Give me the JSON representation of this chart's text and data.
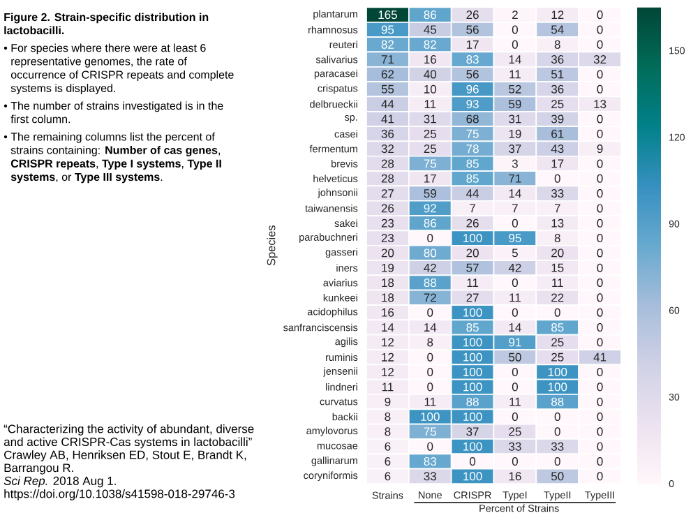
{
  "chart_data": {
    "type": "heatmap",
    "title": "Figure 2. Strain-specific distribution in lactobacilli.",
    "xlabel": "Percent of Strains",
    "ylabel": "Species",
    "categories": [
      "Strains",
      "None",
      "CRISPR",
      "TypeI",
      "TypeII",
      "TypeIII"
    ],
    "y_categories": [
      "plantarum",
      "rhamnosus",
      "reuteri",
      "salivarius",
      "paracasei",
      "crispatus",
      "delbrueckii",
      "sp.",
      "casei",
      "fermentum",
      "brevis",
      "helveticus",
      "johnsonii",
      "taiwanensis",
      "sakei",
      "parabuchneri",
      "gasseri",
      "iners",
      "aviarius",
      "kunkeei",
      "acidophilus",
      "sanfranciscensis",
      "agilis",
      "ruminis",
      "jensenii",
      "lindneri",
      "curvatus",
      "backii",
      "amylovorus",
      "mucosae",
      "gallinarum",
      "coryniformis"
    ],
    "cells": [
      [
        165,
        86,
        26,
        2,
        12,
        0
      ],
      [
        95,
        45,
        56,
        0,
        54,
        0
      ],
      [
        82,
        82,
        17,
        0,
        8,
        0
      ],
      [
        71,
        16,
        83,
        14,
        36,
        32
      ],
      [
        62,
        40,
        56,
        11,
        51,
        0
      ],
      [
        55,
        10,
        96,
        52,
        36,
        0
      ],
      [
        44,
        11,
        93,
        59,
        25,
        13
      ],
      [
        41,
        31,
        68,
        31,
        39,
        0
      ],
      [
        36,
        25,
        75,
        19,
        61,
        0
      ],
      [
        32,
        25,
        78,
        37,
        43,
        9
      ],
      [
        28,
        75,
        85,
        3,
        17,
        0
      ],
      [
        28,
        17,
        85,
        71,
        0,
        0
      ],
      [
        27,
        59,
        44,
        14,
        33,
        0
      ],
      [
        26,
        92,
        7,
        7,
        7,
        0
      ],
      [
        23,
        86,
        26,
        0,
        13,
        0
      ],
      [
        23,
        0,
        100,
        95,
        8,
        0
      ],
      [
        20,
        80,
        20,
        5,
        20,
        0
      ],
      [
        19,
        42,
        57,
        42,
        15,
        0
      ],
      [
        18,
        88,
        11,
        0,
        11,
        0
      ],
      [
        18,
        72,
        27,
        11,
        22,
        0
      ],
      [
        16,
        0,
        100,
        0,
        0,
        0
      ],
      [
        14,
        14,
        85,
        14,
        85,
        0
      ],
      [
        12,
        8,
        100,
        91,
        25,
        0
      ],
      [
        12,
        0,
        100,
        50,
        25,
        41
      ],
      [
        12,
        0,
        100,
        0,
        100,
        0
      ],
      [
        11,
        0,
        100,
        0,
        100,
        0
      ],
      [
        9,
        11,
        88,
        11,
        88,
        0
      ],
      [
        8,
        100,
        100,
        0,
        0,
        0
      ],
      [
        8,
        75,
        37,
        25,
        0,
        0
      ],
      [
        6,
        0,
        100,
        33,
        33,
        0
      ],
      [
        6,
        83,
        0,
        0,
        0,
        0
      ],
      [
        6,
        33,
        100,
        16,
        50,
        0
      ]
    ],
    "clim": [
      0,
      165
    ],
    "cticks": [
      0,
      30,
      60,
      90,
      120,
      150
    ],
    "data_labels": true,
    "annotations": [
      "• For species where there were at least 6 representative genomes, the rate of occurrence of CRISPR repeats and complete systems is displayed.",
      "• The number of strains investigated is in the first column.",
      "• The remaining columns list the percent of strains containing: **Number of cas genes**, **CRISPR repeats**, **Type I systems**, **Type II systems**, or **Type III systems**.",
      "“Characterizing the activity of abundant, diverse and active CRISPR-Cas systems in lactobacilli”",
      "Crawley AB, Henriksen ED, Stout E, Brandt K, Barrangou R.",
      "*Sci Rep.* 2018 Aug 1.",
      "https://doi.org/10.1038/s41598-018-29746-3"
    ]
  }
}
